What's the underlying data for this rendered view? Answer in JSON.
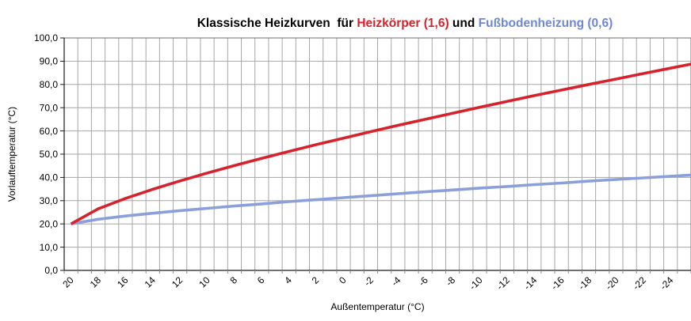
{
  "title": {
    "part_black": "Klassische Heizkurven  für ",
    "part_red": "Heizkörper (1,6)",
    "part_mid": " und ",
    "part_blue": "Fußbodenheizung (0,6)"
  },
  "colors": {
    "radiator_red": "#d8222b",
    "floorheating_blue": "#8b9fdb",
    "title_blue": "#6f88d2",
    "gridline_grey": "#a6a6a6",
    "background": "#ffffff"
  },
  "chart_data": {
    "type": "line",
    "title": "Klassische Heizkurven  für Heizkörper (1,6) und Fußbodenheizung (0,6)",
    "xlabel": "Außentemperatur (°C)",
    "ylabel": "Vorlauftemperatur (°C)",
    "x": [
      20,
      18,
      16,
      14,
      12,
      10,
      8,
      6,
      4,
      2,
      0,
      -2,
      -4,
      -6,
      -8,
      -10,
      -12,
      -14,
      -16,
      -18,
      -20,
      -22,
      -24
    ],
    "x_tick_labels": [
      "20",
      "18",
      "16",
      "14",
      "12",
      "10",
      "8",
      "6",
      "4",
      "2",
      "0",
      "-2",
      "-4",
      "-6",
      "-8",
      "-10",
      "-12",
      "-14",
      "-16",
      "-18",
      "-20",
      "-22",
      "-24"
    ],
    "y_tick_labels": [
      "0,0",
      "10,0",
      "20,0",
      "30,0",
      "40,0",
      "50,0",
      "60,0",
      "70,0",
      "80,0",
      "90,0",
      "100,0"
    ],
    "ylim": [
      0,
      100
    ],
    "grid": "vertical every 1 °C, horizontal every 10 °C",
    "legend_position": "none (series identified by colored title text)",
    "series": [
      {
        "id": "heizkoerper",
        "name": "Heizkörper (1,6)",
        "color": "#d8222b",
        "values": [
          20.0,
          26.5,
          31.0,
          34.9,
          38.5,
          41.9,
          45.1,
          48.2,
          51.2,
          54.1,
          56.9,
          59.7,
          62.4,
          65.0,
          67.6,
          70.2,
          72.7,
          75.2,
          77.6,
          80.0,
          82.3,
          84.7,
          87.0
        ]
      },
      {
        "id": "fussbodenheizung",
        "name": "Fußbodenheizung (0,6)",
        "color": "#8b9fdb",
        "values": [
          20.0,
          22.0,
          23.4,
          24.6,
          25.7,
          26.7,
          27.7,
          28.6,
          29.6,
          30.4,
          31.3,
          32.1,
          33.0,
          33.8,
          34.6,
          35.4,
          36.1,
          36.9,
          37.6,
          38.4,
          39.1,
          39.8,
          40.5
        ]
      }
    ]
  }
}
